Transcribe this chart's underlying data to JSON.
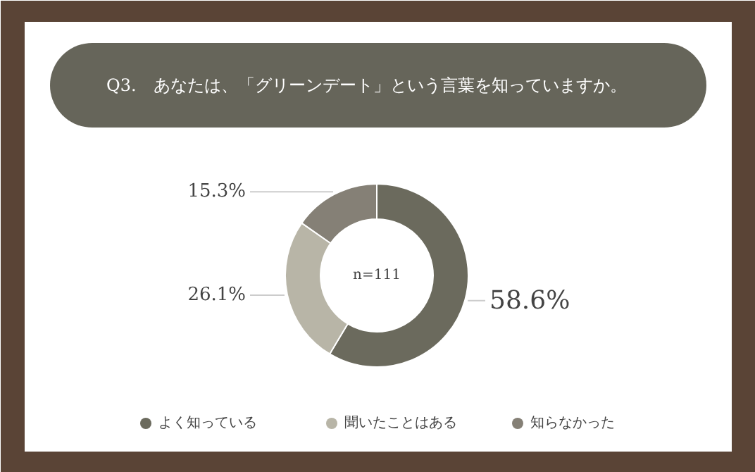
{
  "chart_data": {
    "type": "donut",
    "title": "Q3.　あなたは、「グリーンデート」という言葉を知っていますか。",
    "categories": [
      "よく知っている",
      "聞いたことはある",
      "知らなかった"
    ],
    "values": [
      58.6,
      26.1,
      15.3
    ],
    "colors": [
      "#6b6a5d",
      "#b8b5a7",
      "#858076"
    ],
    "value_labels": [
      "58.6%",
      "26.1%",
      "15.3%"
    ],
    "annotations": [
      "n=111"
    ],
    "legend": "bottom"
  }
}
